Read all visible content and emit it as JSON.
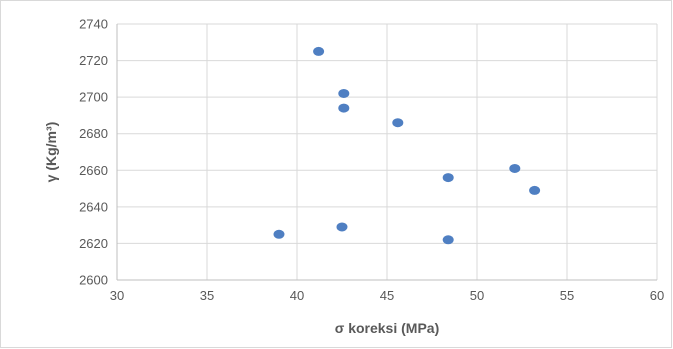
{
  "chart_data": {
    "type": "scatter",
    "xlabel": "σ koreksi (MPa)",
    "ylabel": "γ (Kg/m³)",
    "xlim": [
      30,
      60
    ],
    "ylim": [
      2600,
      2740
    ],
    "xticks": [
      30,
      35,
      40,
      45,
      50,
      55,
      60
    ],
    "yticks": [
      2600,
      2620,
      2640,
      2660,
      2680,
      2700,
      2720,
      2740
    ],
    "grid": true,
    "legend": "none",
    "marker_color": "#4f7fc2",
    "series": [
      {
        "x": [
          41.2,
          42.6,
          42.6,
          45.6,
          52.1,
          53.2,
          48.4,
          39.0,
          42.5,
          48.4
        ],
        "y": [
          2725,
          2702,
          2694,
          2686,
          2661,
          2649,
          2656,
          2625,
          2629,
          2622
        ]
      }
    ]
  }
}
